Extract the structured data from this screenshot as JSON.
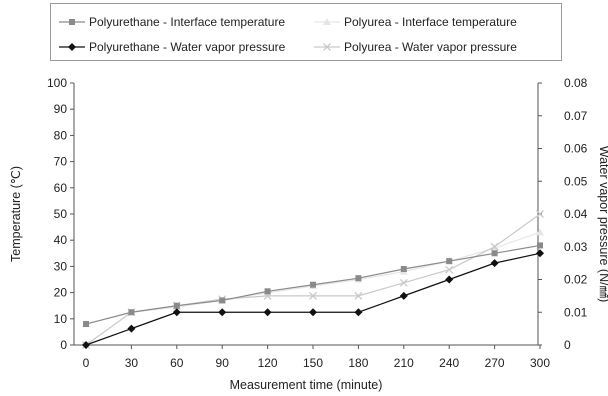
{
  "chart_data": {
    "type": "line",
    "xlabel": "Measurement time (minute)",
    "ylabel_left": "Temperature (℃)",
    "ylabel_right": "Water vapor pressure (N/㎟)",
    "x": [
      0,
      30,
      60,
      90,
      120,
      150,
      180,
      210,
      240,
      270,
      300
    ],
    "x_tick_labels": [
      "0",
      "30",
      "60",
      "90",
      "120",
      "150",
      "180",
      "210",
      "240",
      "270",
      "300"
    ],
    "ylim_left": [
      0,
      100
    ],
    "y_left_ticks": [
      "0",
      "10",
      "20",
      "30",
      "40",
      "50",
      "60",
      "70",
      "80",
      "90",
      "100"
    ],
    "ylim_right": [
      0,
      0.08
    ],
    "y_right_ticks": [
      "0",
      "0.01",
      "0.02",
      "0.03",
      "0.04",
      "0.05",
      "0.06",
      "0.07",
      "0.08"
    ],
    "grid": false,
    "legend_position": "top",
    "series": [
      {
        "name": "Polyurethane - Interface temperature",
        "axis": "left",
        "marker": "square",
        "color": "#8a8a8a",
        "values": [
          8,
          12.5,
          15,
          17,
          20.5,
          23,
          25.5,
          29,
          32,
          35,
          38
        ]
      },
      {
        "name": "Polyurea - Interface temperature",
        "axis": "left",
        "marker": "triangle",
        "color": "#e6e6e6",
        "values": [
          8,
          12.5,
          14.5,
          17,
          20,
          22.5,
          25,
          28,
          32,
          37,
          43
        ]
      },
      {
        "name": "Polyurethane - Water vapor pressure",
        "axis": "right",
        "marker": "diamond",
        "color": "#111111",
        "values": [
          0,
          0.005,
          0.01,
          0.01,
          0.01,
          0.01,
          0.01,
          0.015,
          0.02,
          0.025,
          0.028
        ]
      },
      {
        "name": "Polyurea - Water vapor pressure",
        "axis": "right",
        "marker": "cross",
        "color": "#c9c9c9",
        "values": [
          0,
          0.01,
          0.012,
          0.014,
          0.015,
          0.015,
          0.015,
          0.019,
          0.023,
          0.03,
          0.04
        ]
      }
    ]
  }
}
